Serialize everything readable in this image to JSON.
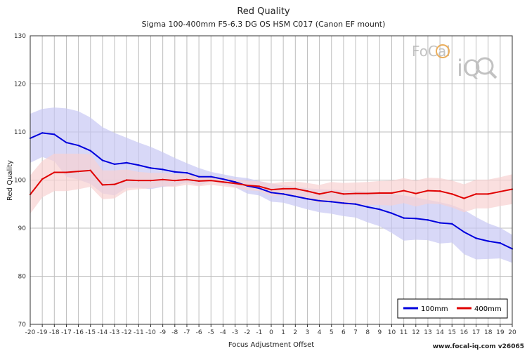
{
  "chart_data": {
    "type": "line",
    "title": "Red Quality",
    "subtitle": "Sigma 100-400mm F5-6.3 DG OS HSM C017 (Canon EF mount)",
    "xlabel": "Focus Adjustment Offset",
    "ylabel": "Red Quality",
    "xlim": [
      -20,
      20
    ],
    "ylim": [
      70,
      130
    ],
    "x": [
      -20,
      -19,
      -18,
      -17,
      -16,
      -15,
      -14,
      -13,
      -12,
      -11,
      -10,
      -9,
      -8,
      -7,
      -6,
      -5,
      -4,
      -3,
      -2,
      -1,
      0,
      1,
      2,
      3,
      4,
      5,
      6,
      7,
      8,
      9,
      10,
      11,
      12,
      13,
      14,
      15,
      16,
      17,
      18,
      19,
      20
    ],
    "x_tick_labels": [
      "-20",
      "-19",
      "-18",
      "-17",
      "-16",
      "-15",
      "-14",
      "-13",
      "-12",
      "-11",
      "-10",
      "-9",
      "-8",
      "-7",
      "-6",
      "-5",
      "-4",
      "-3",
      "-2",
      "-1",
      "0",
      "1",
      "2",
      "3",
      "4",
      "5",
      "6",
      "7",
      "8",
      "9",
      "10",
      "11",
      "12",
      "13",
      "14",
      "15",
      "16",
      "17",
      "18",
      "19",
      "20"
    ],
    "y_tick_labels": [
      "70",
      "80",
      "90",
      "100",
      "110",
      "120",
      "130"
    ],
    "grid": true,
    "legend_position": "bottom-right",
    "series": [
      {
        "name": "100mm",
        "color": "#0000dd",
        "band_color": "#c8c8f4",
        "values": [
          108.7,
          109.8,
          109.5,
          107.8,
          107.2,
          106.1,
          104.1,
          103.3,
          103.6,
          103.1,
          102.5,
          102.2,
          101.7,
          101.5,
          100.7,
          100.7,
          100.2,
          99.6,
          98.8,
          98.3,
          97.4,
          97.1,
          96.6,
          96.1,
          95.7,
          95.5,
          95.2,
          95.0,
          94.4,
          93.9,
          93.1,
          92.1,
          92.0,
          91.7,
          91.1,
          90.9,
          89.2,
          87.9,
          87.3,
          86.9,
          85.7
        ],
        "upper": [
          113.8,
          114.8,
          115.1,
          114.9,
          114.3,
          113.0,
          111.0,
          109.8,
          108.8,
          107.8,
          106.9,
          105.8,
          104.6,
          103.5,
          102.5,
          101.7,
          101.2,
          100.7,
          100.4,
          99.8,
          99.3,
          98.9,
          98.6,
          98.3,
          98.1,
          98.0,
          97.9,
          97.8,
          97.6,
          97.4,
          97.2,
          96.8,
          96.4,
          95.9,
          95.4,
          94.8,
          93.8,
          92.3,
          91.0,
          90.1,
          88.6
        ],
        "lower": [
          103.6,
          104.8,
          103.9,
          100.7,
          100.1,
          99.2,
          97.2,
          96.8,
          98.4,
          98.4,
          98.1,
          98.6,
          98.8,
          99.5,
          98.9,
          99.7,
          99.2,
          98.5,
          97.2,
          96.8,
          95.5,
          95.3,
          94.6,
          93.9,
          93.3,
          93.0,
          92.5,
          92.2,
          91.2,
          90.4,
          89.0,
          87.4,
          87.6,
          87.5,
          86.8,
          87.0,
          84.6,
          83.5,
          83.6,
          83.7,
          82.8
        ]
      },
      {
        "name": "400mm",
        "color": "#e00000",
        "band_color": "#f8d2d2",
        "values": [
          97.0,
          100.2,
          101.6,
          101.6,
          101.8,
          102.0,
          99.0,
          99.1,
          100.0,
          99.9,
          99.9,
          100.1,
          99.9,
          100.1,
          99.8,
          99.9,
          99.6,
          99.3,
          98.9,
          98.7,
          98.0,
          98.2,
          98.2,
          97.7,
          97.1,
          97.6,
          97.1,
          97.2,
          97.2,
          97.3,
          97.3,
          97.8,
          97.2,
          97.8,
          97.7,
          97.1,
          96.2,
          97.1,
          97.1,
          97.6,
          98.1
        ],
        "upper": [
          101.0,
          104.0,
          105.5,
          105.5,
          105.5,
          105.4,
          102.0,
          102.0,
          102.2,
          101.7,
          101.5,
          101.5,
          101.2,
          101.2,
          100.9,
          100.8,
          100.5,
          100.2,
          99.9,
          99.7,
          99.3,
          99.6,
          99.7,
          99.4,
          99.0,
          99.6,
          99.4,
          99.5,
          99.6,
          99.8,
          99.9,
          100.4,
          99.9,
          100.5,
          100.4,
          99.9,
          99.1,
          100.1,
          100.1,
          100.6,
          101.2
        ],
        "lower": [
          93.0,
          96.4,
          97.7,
          97.7,
          98.1,
          98.6,
          96.0,
          96.2,
          97.8,
          98.1,
          98.3,
          98.7,
          98.6,
          99.0,
          98.7,
          99.0,
          98.7,
          98.4,
          97.9,
          97.7,
          96.7,
          96.8,
          96.7,
          96.0,
          95.2,
          95.6,
          94.8,
          94.9,
          94.8,
          94.8,
          94.7,
          95.2,
          94.5,
          95.1,
          95.0,
          94.3,
          93.3,
          94.1,
          94.1,
          94.6,
          95.0
        ]
      }
    ]
  },
  "logo": {
    "text_top": "FoCal",
    "text_bottom": "iQ"
  },
  "footer": "www.focal-iq.com  v26065"
}
